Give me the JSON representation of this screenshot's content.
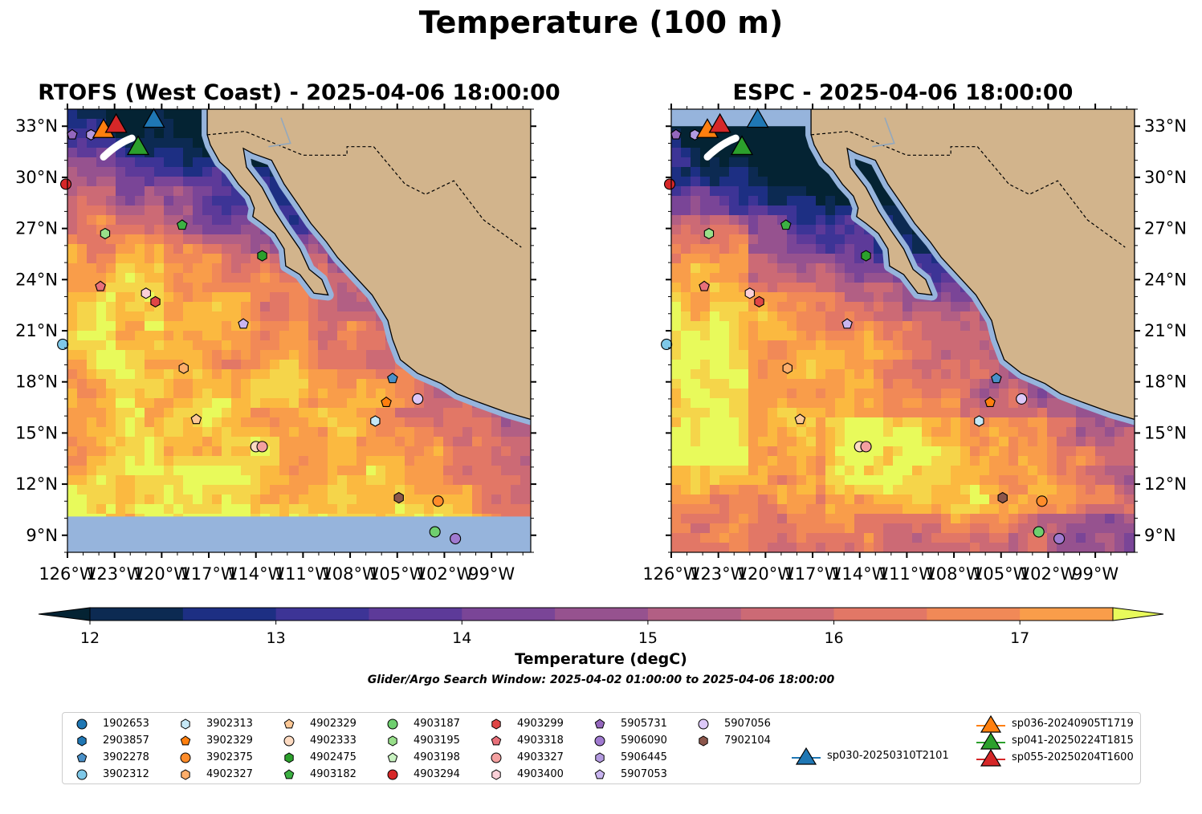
{
  "title": "Temperature (100 m)",
  "panels": [
    {
      "title": "RTOFS (West Coast) - 2025-04-06 18:00:00"
    },
    {
      "title": "ESPC - 2025-04-06 18:00:00"
    }
  ],
  "colors": {
    "land": "#d2b48c",
    "no_data": "#96b4dc",
    "colormap": [
      "#042333",
      "#0c2a52",
      "#1d2f83",
      "#3d3496",
      "#5d3a99",
      "#7a4597",
      "#96528f",
      "#b25f84",
      "#cc6a75",
      "#e27766",
      "#f18957",
      "#f99d4a",
      "#fbb940",
      "#f5d54a",
      "#e8fa5b"
    ]
  },
  "chart_data": {
    "type": "heatmap",
    "map_extent": {
      "lon": [
        -126,
        -96.5
      ],
      "lat": [
        8,
        34
      ]
    },
    "xticks": [
      "126°W",
      "123°W",
      "120°W",
      "117°W",
      "114°W",
      "111°W",
      "108°W",
      "105°W",
      "102°W",
      "99°W"
    ],
    "yticks": [
      "9°N",
      "12°N",
      "15°N",
      "18°N",
      "21°N",
      "24°N",
      "27°N",
      "30°N",
      "33°N"
    ],
    "colorbar": {
      "label": "Temperature (degC)",
      "range": [
        12,
        17.5
      ],
      "step": 0.5,
      "extend": "both",
      "ticks": [
        "12",
        "13",
        "14",
        "15",
        "16",
        "17"
      ]
    },
    "search_window": "Glider/Argo Search Window: 2025-04-02 01:00:00 to 2025-04-06 18:00:00",
    "floats": [
      {
        "id": "1902653",
        "marker": "circle",
        "color": "#1f77b4",
        "lon": null,
        "lat": null
      },
      {
        "id": "2903857",
        "marker": "hexagon",
        "color": "#1f77b4",
        "lon": null,
        "lat": null
      },
      {
        "id": "3902278",
        "marker": "pentagon",
        "color": "#4a90c8",
        "lon": -105.3,
        "lat": 18.2
      },
      {
        "id": "3902312",
        "marker": "circle",
        "color": "#7ec8e8",
        "lon": -126.3,
        "lat": 20.2
      },
      {
        "id": "3902313",
        "marker": "hexagon",
        "color": "#c6e8f6",
        "lon": -106.4,
        "lat": 15.7
      },
      {
        "id": "3902329",
        "marker": "pentagon",
        "color": "#ff7f0e",
        "lon": -105.7,
        "lat": 16.8
      },
      {
        "id": "3902375",
        "marker": "circle",
        "color": "#ff8c2a",
        "lon": -102.4,
        "lat": 11.0
      },
      {
        "id": "4902327",
        "marker": "hexagon",
        "color": "#fdae6b",
        "lon": -118.6,
        "lat": 18.8
      },
      {
        "id": "4902329",
        "marker": "pentagon",
        "color": "#fdc896",
        "lon": -117.8,
        "lat": 15.8
      },
      {
        "id": "4902333",
        "marker": "circle",
        "color": "#fddbc2",
        "lon": -114.0,
        "lat": 14.2
      },
      {
        "id": "4902475",
        "marker": "hexagon",
        "color": "#2ca02c",
        "lon": -113.6,
        "lat": 25.4
      },
      {
        "id": "4903182",
        "marker": "pentagon",
        "color": "#3cb043",
        "lon": -118.7,
        "lat": 27.2
      },
      {
        "id": "4903187",
        "marker": "circle",
        "color": "#6fcf6f",
        "lon": -102.6,
        "lat": 9.2
      },
      {
        "id": "4903195",
        "marker": "hexagon",
        "color": "#98df8a",
        "lon": -123.6,
        "lat": 26.7
      },
      {
        "id": "4903198",
        "marker": "pentagon",
        "color": "#c8f2c0",
        "lon": null,
        "lat": null
      },
      {
        "id": "4903294",
        "marker": "circle",
        "color": "#d62728",
        "lon": -126.1,
        "lat": 29.6
      },
      {
        "id": "4903299",
        "marker": "hexagon",
        "color": "#e04646",
        "lon": -120.4,
        "lat": 22.7
      },
      {
        "id": "4903318",
        "marker": "pentagon",
        "color": "#e8707a",
        "lon": -123.9,
        "lat": 23.6
      },
      {
        "id": "4903327",
        "marker": "circle",
        "color": "#f4a0a0",
        "lon": -113.6,
        "lat": 14.2
      },
      {
        "id": "4903400",
        "marker": "hexagon",
        "color": "#fbd0d8",
        "lon": -121.0,
        "lat": 23.2
      },
      {
        "id": "5905731",
        "marker": "pentagon",
        "color": "#9467bd",
        "lon": -125.7,
        "lat": 32.5
      },
      {
        "id": "5906090",
        "marker": "circle",
        "color": "#a07ad0",
        "lon": -101.3,
        "lat": 8.8
      },
      {
        "id": "5906445",
        "marker": "hexagon",
        "color": "#b39ae0",
        "lon": -124.5,
        "lat": 32.5
      },
      {
        "id": "5907053",
        "marker": "pentagon",
        "color": "#c9b5f0",
        "lon": -114.8,
        "lat": 21.4
      },
      {
        "id": "5907056",
        "marker": "circle",
        "color": "#dcc8f8",
        "lon": -103.7,
        "lat": 17.0
      },
      {
        "id": "7902104",
        "marker": "hexagon",
        "color": "#8c564b",
        "lon": -104.9,
        "lat": 11.2
      }
    ],
    "gliders": [
      {
        "id": "sp030-20250310T2101",
        "color": "#1f77b4",
        "lon": -120.5,
        "lat": 33.4
      },
      {
        "id": "sp036-20240905T1719",
        "color": "#ff7f0e",
        "lon": -123.7,
        "lat": 32.8
      },
      {
        "id": "sp041-20250224T1815",
        "color": "#2ca02c",
        "lon": -121.5,
        "lat": 31.8
      },
      {
        "id": "sp055-20250204T1600",
        "color": "#d62728",
        "lon": -122.9,
        "lat": 33.1
      }
    ]
  }
}
